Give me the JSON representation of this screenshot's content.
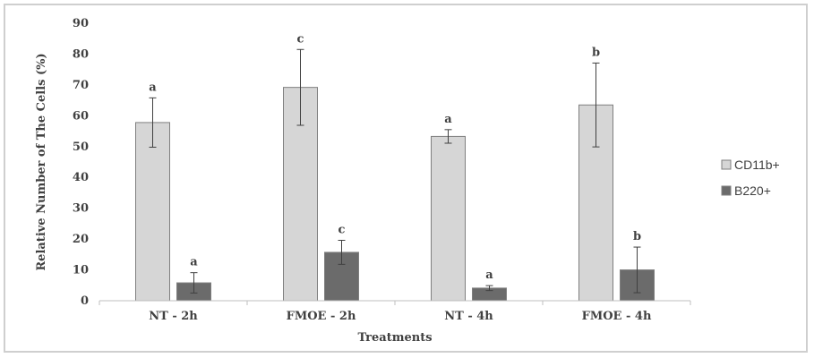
{
  "chart_data": {
    "type": "bar",
    "title": "",
    "xlabel": "Treatments",
    "ylabel": "Relative Number of The Cells (%)",
    "ylim": [
      0,
      90
    ],
    "yticks": [
      0,
      10,
      20,
      30,
      40,
      50,
      60,
      70,
      80,
      90
    ],
    "grid": false,
    "legend_position": "right",
    "categories": [
      "NT - 2h",
      "FMOE - 2h",
      "NT - 4h",
      "FMOE - 4h"
    ],
    "series": [
      {
        "name": "CD11b+",
        "color": "#d6d6d6",
        "values": [
          57.8,
          69.2,
          53.3,
          63.5
        ],
        "error": [
          8.0,
          12.3,
          2.2,
          13.6
        ],
        "labels": [
          "a",
          "c",
          "a",
          "b"
        ]
      },
      {
        "name": "B220+",
        "color": "#6b6b6b",
        "values": [
          5.8,
          15.7,
          4.1,
          10.0
        ],
        "error": [
          3.3,
          3.9,
          0.8,
          7.4
        ],
        "labels": [
          "a",
          "c",
          "a",
          "b"
        ]
      }
    ]
  }
}
